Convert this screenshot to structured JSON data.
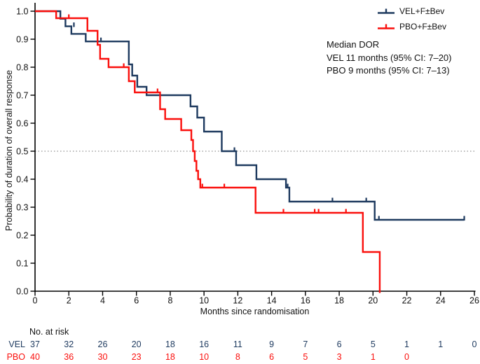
{
  "chart_data": {
    "type": "line",
    "subtype": "kaplan-meier-step",
    "title": "",
    "xlabel": "Months since randomisation",
    "ylabel": "Probability of duration of overall response",
    "xlim": [
      0,
      26
    ],
    "ylim": [
      0.0,
      1.0
    ],
    "xticks": [
      0,
      2,
      4,
      6,
      8,
      10,
      12,
      14,
      16,
      18,
      20,
      22,
      24,
      26
    ],
    "ytick_labels": [
      "0.0",
      "0.1",
      "0.2",
      "0.3",
      "0.4",
      "0.5",
      "0.6",
      "0.7",
      "0.8",
      "0.9",
      "1.0"
    ],
    "reference_line_y": 0.5,
    "grid": false,
    "legend_position": "top-right",
    "series": [
      {
        "name": "VEL+F±Bev",
        "color": "#1e3a5f",
        "n_at_start": 37,
        "steps": [
          [
            0,
            1.0
          ],
          [
            1.5,
            0.973
          ],
          [
            1.8,
            0.946
          ],
          [
            2.15,
            0.919
          ],
          [
            3.0,
            0.892
          ],
          [
            5.55,
            0.81
          ],
          [
            5.75,
            0.77
          ],
          [
            6.05,
            0.73
          ],
          [
            6.6,
            0.7
          ],
          [
            9.2,
            0.66
          ],
          [
            9.6,
            0.62
          ],
          [
            10.0,
            0.57
          ],
          [
            11.05,
            0.5
          ],
          [
            11.9,
            0.45
          ],
          [
            13.1,
            0.4
          ],
          [
            14.85,
            0.37
          ],
          [
            15.05,
            0.32
          ],
          [
            20.1,
            0.255
          ]
        ],
        "end_x": 25.4,
        "censor_marks": [
          [
            2.3,
            0.946
          ],
          [
            3.9,
            0.892
          ],
          [
            11.8,
            0.5
          ],
          [
            14.95,
            0.37
          ],
          [
            17.6,
            0.32
          ],
          [
            19.6,
            0.32
          ],
          [
            20.35,
            0.255
          ],
          [
            25.4,
            0.255
          ]
        ]
      },
      {
        "name": "PBO+F±Bev",
        "color": "#fa0f0c",
        "n_at_start": 40,
        "steps": [
          [
            0,
            1.0
          ],
          [
            1.25,
            0.975
          ],
          [
            3.1,
            0.93
          ],
          [
            3.7,
            0.88
          ],
          [
            3.85,
            0.83
          ],
          [
            4.35,
            0.8
          ],
          [
            5.55,
            0.75
          ],
          [
            5.9,
            0.71
          ],
          [
            7.4,
            0.65
          ],
          [
            7.7,
            0.615
          ],
          [
            8.65,
            0.575
          ],
          [
            9.25,
            0.54
          ],
          [
            9.35,
            0.5
          ],
          [
            9.45,
            0.465
          ],
          [
            9.55,
            0.43
          ],
          [
            9.65,
            0.4
          ],
          [
            9.78,
            0.37
          ],
          [
            13.05,
            0.28
          ],
          [
            19.4,
            0.14
          ],
          [
            20.4,
            0.0
          ]
        ],
        "end_x": 20.4,
        "censor_marks": [
          [
            2.0,
            0.975
          ],
          [
            5.25,
            0.8
          ],
          [
            7.25,
            0.71
          ],
          [
            9.9,
            0.37
          ],
          [
            11.2,
            0.37
          ],
          [
            14.7,
            0.28
          ],
          [
            16.55,
            0.28
          ],
          [
            16.78,
            0.28
          ],
          [
            18.4,
            0.28
          ]
        ]
      }
    ],
    "annotation": [
      "Median DOR",
      "VEL 11 months (95% CI: 7–20)",
      "PBO 9 months (95% CI: 7–13)"
    ],
    "risk_table": {
      "label": "No. at risk",
      "tick_months": [
        0,
        2,
        4,
        6,
        8,
        10,
        12,
        14,
        16,
        18,
        20,
        22,
        24,
        26
      ],
      "rows": [
        {
          "name": "VEL",
          "color": "#1e3a5f",
          "values": [
            37,
            32,
            26,
            20,
            18,
            16,
            11,
            9,
            7,
            6,
            5,
            1,
            1,
            0
          ]
        },
        {
          "name": "PBO",
          "color": "#fa0f0c",
          "values": [
            40,
            36,
            30,
            23,
            18,
            10,
            8,
            6,
            5,
            3,
            1,
            0
          ]
        }
      ]
    }
  }
}
